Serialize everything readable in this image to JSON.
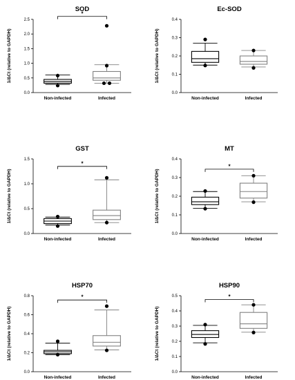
{
  "colors": {
    "axis": "#000000",
    "group_a": "#000000",
    "group_b": "#808080",
    "point": "#000000"
  },
  "chart_data": [
    {
      "type": "box",
      "title": "SOD",
      "ylabel": "1/ΔCt (relative to GAPDH)",
      "ylim": [
        0,
        2.5
      ],
      "yticks": [
        0.0,
        0.5,
        1.0,
        1.5,
        2.0,
        2.5
      ],
      "ytick_labels": [
        "0.0",
        "0.5",
        "1.0",
        "1.5",
        "2.0",
        "2.5"
      ],
      "categories": [
        "Non-infected",
        "Infected"
      ],
      "boxes": [
        {
          "name": "Non-infected",
          "whisker_low": 0.28,
          "q1": 0.32,
          "median": 0.38,
          "q3": 0.45,
          "whisker_high": 0.6
        },
        {
          "name": "Infected",
          "whisker_low": 0.32,
          "q1": 0.42,
          "median": 0.5,
          "q3": 0.72,
          "whisker_high": 0.95
        }
      ],
      "points": [
        {
          "category": "Non-infected",
          "values": [
            0.24,
            0.58
          ]
        },
        {
          "category": "Infected",
          "values": [
            0.32,
            0.32,
            0.92,
            2.28
          ]
        }
      ],
      "significance": [
        {
          "from": "Non-infected",
          "to": "Infected",
          "y": 2.6,
          "label": "*"
        }
      ]
    },
    {
      "type": "box",
      "title": "Ec-SOD",
      "ylabel": "1/ΔCt (relative to GAPDH)",
      "ylim": [
        0,
        0.4
      ],
      "yticks": [
        0.0,
        0.1,
        0.2,
        0.3,
        0.4
      ],
      "ytick_labels": [
        "0.0",
        "0.1",
        "0.2",
        "0.3",
        "0.4"
      ],
      "categories": [
        "Non-infected",
        "Infected"
      ],
      "boxes": [
        {
          "name": "Non-infected",
          "whisker_low": 0.15,
          "q1": 0.165,
          "median": 0.185,
          "q3": 0.225,
          "whisker_high": 0.27
        },
        {
          "name": "Infected",
          "whisker_low": 0.14,
          "q1": 0.155,
          "median": 0.17,
          "q3": 0.2,
          "whisker_high": 0.23
        }
      ],
      "points": [
        {
          "category": "Non-infected",
          "values": [
            0.148,
            0.29
          ]
        },
        {
          "category": "Infected",
          "values": [
            0.135,
            0.23
          ]
        }
      ],
      "significance": []
    },
    {
      "type": "box",
      "title": "GST",
      "ylabel": "1/ΔCt (relative to GAPDH)",
      "ylim": [
        0,
        1.5
      ],
      "yticks": [
        0.0,
        0.5,
        1.0,
        1.5
      ],
      "ytick_labels": [
        "0.0",
        "0.5",
        "1.0",
        "1.5"
      ],
      "categories": [
        "Non-infected",
        "Infected"
      ],
      "boxes": [
        {
          "name": "Non-infected",
          "whisker_low": 0.17,
          "q1": 0.2,
          "median": 0.25,
          "q3": 0.3,
          "whisker_high": 0.33
        },
        {
          "name": "Infected",
          "whisker_low": 0.22,
          "q1": 0.28,
          "median": 0.36,
          "q3": 0.47,
          "whisker_high": 1.08
        }
      ],
      "points": [
        {
          "category": "Non-infected",
          "values": [
            0.15,
            0.34
          ]
        },
        {
          "category": "Infected",
          "values": [
            0.22,
            1.12
          ]
        }
      ],
      "significance": [
        {
          "from": "Non-infected",
          "to": "Infected",
          "y": 1.35,
          "label": "*"
        }
      ]
    },
    {
      "type": "box",
      "title": "MT",
      "ylabel": "1/ΔCt (relative to GAPDH)",
      "ylim": [
        0,
        0.4
      ],
      "yticks": [
        0.0,
        0.1,
        0.2,
        0.3,
        0.4
      ],
      "ytick_labels": [
        "0.0",
        "0.1",
        "0.2",
        "0.3",
        "0.4"
      ],
      "categories": [
        "Non-infected",
        "Infected"
      ],
      "boxes": [
        {
          "name": "Non-infected",
          "whisker_low": 0.135,
          "q1": 0.155,
          "median": 0.17,
          "q3": 0.195,
          "whisker_high": 0.225
        },
        {
          "name": "Infected",
          "whisker_low": 0.17,
          "q1": 0.19,
          "median": 0.225,
          "q3": 0.27,
          "whisker_high": 0.31
        }
      ],
      "points": [
        {
          "category": "Non-infected",
          "values": [
            0.133,
            0.228
          ]
        },
        {
          "category": "Infected",
          "values": [
            0.168,
            0.31
          ]
        }
      ],
      "significance": [
        {
          "from": "Non-infected",
          "to": "Infected",
          "y": 0.345,
          "label": "*"
        }
      ]
    },
    {
      "type": "box",
      "title": "HSP70",
      "ylabel": "1/ΔCt (relative to GAPDH)",
      "ylim": [
        0,
        0.8
      ],
      "yticks": [
        0.0,
        0.2,
        0.4,
        0.6,
        0.8
      ],
      "ytick_labels": [
        "0.0",
        "0.2",
        "0.4",
        "0.6",
        "0.8"
      ],
      "categories": [
        "Non-infected",
        "Infected"
      ],
      "boxes": [
        {
          "name": "Non-infected",
          "whisker_low": 0.18,
          "q1": 0.19,
          "median": 0.21,
          "q3": 0.225,
          "whisker_high": 0.3
        },
        {
          "name": "Infected",
          "whisker_low": 0.23,
          "q1": 0.27,
          "median": 0.31,
          "q3": 0.38,
          "whisker_high": 0.65
        }
      ],
      "points": [
        {
          "category": "Non-infected",
          "values": [
            0.18,
            0.32
          ]
        },
        {
          "category": "Infected",
          "values": [
            0.225,
            0.69
          ]
        }
      ],
      "significance": [
        {
          "from": "Non-infected",
          "to": "Infected",
          "y": 0.755,
          "label": "*"
        }
      ]
    },
    {
      "type": "box",
      "title": "HSP90",
      "ylabel": "1/ΔCt (relative to GAPDH)",
      "ylim": [
        0,
        0.5
      ],
      "yticks": [
        0.0,
        0.1,
        0.2,
        0.3,
        0.4,
        0.5
      ],
      "ytick_labels": [
        "0.0",
        "0.1",
        "0.2",
        "0.3",
        "0.4",
        "0.5"
      ],
      "categories": [
        "Non-infected",
        "Infected"
      ],
      "boxes": [
        {
          "name": "Non-infected",
          "whisker_low": 0.19,
          "q1": 0.225,
          "median": 0.245,
          "q3": 0.27,
          "whisker_high": 0.305
        },
        {
          "name": "Infected",
          "whisker_low": 0.26,
          "q1": 0.285,
          "median": 0.315,
          "q3": 0.39,
          "whisker_high": 0.44
        }
      ],
      "points": [
        {
          "category": "Non-infected",
          "values": [
            0.183,
            0.31
          ]
        },
        {
          "category": "Infected",
          "values": [
            0.258,
            0.44
          ]
        }
      ],
      "significance": [
        {
          "from": "Non-infected",
          "to": "Infected",
          "y": 0.475,
          "label": "*"
        }
      ]
    }
  ]
}
